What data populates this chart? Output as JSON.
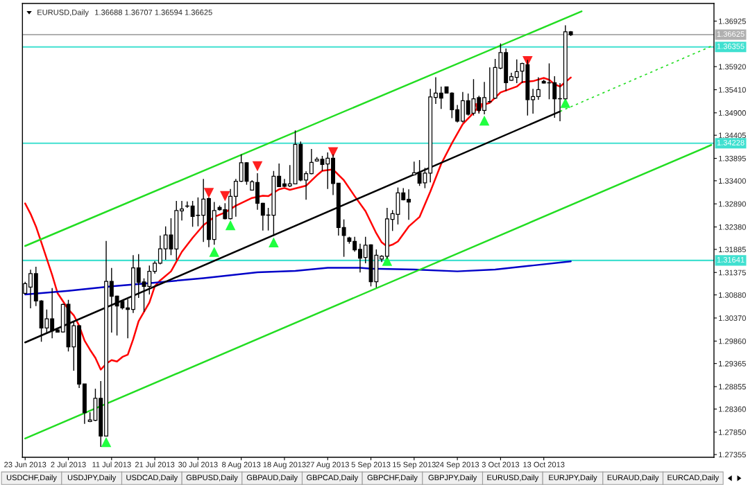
{
  "chart_data": {
    "type": "candlestick",
    "title": "EURUSD,Daily",
    "subtitle": "1.36688 1.36707 1.36594 1.36625",
    "categories": [
      "23 Jun 2013",
      null,
      null,
      null,
      null,
      null,
      null,
      null,
      "2 Jul 2013",
      null,
      null,
      null,
      null,
      null,
      null,
      null,
      "11 Jul 2013",
      null,
      null,
      null,
      null,
      null,
      null,
      null,
      "21 Jul 2013",
      null,
      null,
      null,
      null,
      null,
      null,
      null,
      "30 Jul 2013",
      null,
      null,
      null,
      null,
      null,
      null,
      null,
      "8 Aug 2013",
      null,
      null,
      null,
      null,
      null,
      null,
      null,
      "18 Aug 2013",
      null,
      null,
      null,
      null,
      null,
      null,
      null,
      "27 Aug 2013",
      null,
      null,
      null,
      null,
      null,
      null,
      null,
      "5 Sep 2013",
      null,
      null,
      null,
      null,
      null,
      null,
      null,
      "15 Sep 2013",
      null,
      null,
      null,
      null,
      null,
      null,
      null,
      "24 Sep 2013",
      null,
      null,
      null,
      null,
      null,
      null,
      null,
      "3 Oct 2013",
      null,
      null,
      null,
      null,
      null,
      null,
      null,
      "13 Oct 2013",
      null,
      null,
      null,
      null,
      null,
      null,
      null,
      null,
      null,
      null,
      null,
      null,
      null,
      null,
      null,
      null,
      null,
      null,
      null,
      null,
      null,
      null,
      null,
      null,
      null,
      null,
      null,
      null,
      null,
      null,
      null
    ],
    "ohlc": [
      [
        1.30915,
        1.3117,
        1.3089,
        1.31129
      ],
      [
        1.31053,
        1.31435,
        1.30584,
        1.31349
      ],
      [
        1.31349,
        1.31502,
        1.30635,
        1.30747
      ],
      [
        1.30747,
        1.30762,
        1.29844,
        1.3015
      ],
      [
        1.3015,
        1.30558,
        1.30023,
        1.30354
      ],
      [
        1.30354,
        1.31032,
        1.29921,
        1.30084
      ],
      [
        1.30109,
        1.30125,
        1.30048,
        1.30058
      ],
      [
        1.30063,
        1.30686,
        1.30048,
        1.3067
      ],
      [
        1.30675,
        1.30772,
        1.2963,
        1.29732
      ],
      [
        1.29732,
        1.30303,
        1.29207,
        1.30201
      ],
      [
        1.30201,
        1.30211,
        1.28824,
        1.28911
      ],
      [
        1.28916,
        1.28916,
        1.28034,
        1.28278
      ],
      [
        1.28085,
        1.28289,
        1.28069,
        1.2812
      ],
      [
        1.2811,
        1.28809,
        1.28095,
        1.28595
      ],
      [
        1.28595,
        1.28977,
        1.27524,
        1.27763
      ],
      [
        1.27763,
        1.32073,
        1.27753,
        1.3118
      ],
      [
        1.3118,
        1.31476,
        1.30048,
        1.30849
      ],
      [
        1.30854,
        1.30864,
        1.29982,
        1.30635
      ],
      [
        1.30737,
        1.30747,
        1.30558,
        1.30594
      ],
      [
        1.30594,
        1.30788,
        1.29921,
        1.30558
      ],
      [
        1.30558,
        1.31757,
        1.30482,
        1.31476
      ],
      [
        1.31476,
        1.31782,
        1.30813,
        1.31155
      ],
      [
        1.31165,
        1.31247,
        1.30507,
        1.31068
      ],
      [
        1.31068,
        1.31527,
        1.3089,
        1.314
      ],
      [
        1.314,
        1.31629,
        1.31349,
        1.31578
      ],
      [
        1.31578,
        1.3219,
        1.31553,
        1.31899
      ],
      [
        1.31899,
        1.32394,
        1.31655,
        1.32205
      ],
      [
        1.32205,
        1.32573,
        1.31757,
        1.31894
      ],
      [
        1.31894,
        1.32955,
        1.31655,
        1.32741
      ],
      [
        1.32736,
        1.32955,
        1.32522,
        1.32777
      ],
      [
        1.32843,
        1.32945,
        1.32802,
        1.32838
      ],
      [
        1.32843,
        1.32955,
        1.32384,
        1.32613
      ],
      [
        1.32639,
        1.33032,
        1.32394,
        1.32634
      ],
      [
        1.32639,
        1.3344,
        1.32047,
        1.32996
      ],
      [
        1.33006,
        1.33032,
        1.31935,
        1.32103
      ],
      [
        1.32103,
        1.3293,
        1.31986,
        1.32741
      ],
      [
        1.32812,
        1.32853,
        1.32741,
        1.32761
      ],
      [
        1.32761,
        1.32904,
        1.32547,
        1.32562
      ],
      [
        1.32562,
        1.3322,
        1.32547,
        1.33057
      ],
      [
        1.33057,
        1.3344,
        1.32608,
        1.33389
      ],
      [
        1.33389,
        1.33985,
        1.33373,
        1.33797
      ],
      [
        1.33797,
        1.33812,
        1.33312,
        1.33389
      ],
      [
        1.33195,
        1.33414,
        1.33184,
        1.33378
      ],
      [
        1.33363,
        1.33567,
        1.32761,
        1.32904
      ],
      [
        1.32904,
        1.32914,
        1.32302,
        1.32639
      ],
      [
        1.32644,
        1.32802,
        1.32302,
        1.32639
      ],
      [
        1.32639,
        1.33618,
        1.3218,
        1.33501
      ],
      [
        1.33501,
        1.33781,
        1.33261,
        1.33271
      ],
      [
        1.33332,
        1.3344,
        1.33261,
        1.33276
      ],
      [
        1.33286,
        1.33746,
        1.33261,
        1.33332
      ],
      [
        1.33332,
        1.34511,
        1.33322,
        1.34205
      ],
      [
        1.34205,
        1.34266,
        1.33389,
        1.33414
      ],
      [
        1.33414,
        1.33608,
        1.32981,
        1.33557
      ],
      [
        1.33557,
        1.34103,
        1.33542,
        1.33807
      ],
      [
        1.33837,
        1.33924,
        1.33822,
        1.33873
      ],
      [
        1.33873,
        1.3395,
        1.33618,
        1.33761
      ],
      [
        1.33771,
        1.34026,
        1.3322,
        1.33899
      ],
      [
        1.33899,
        1.33985,
        1.33083,
        1.33338
      ],
      [
        1.33348,
        1.33348,
        1.3219,
        1.32369
      ],
      [
        1.32369,
        1.32547,
        1.31721,
        1.3219
      ],
      [
        1.32139,
        1.32164,
        1.32011,
        1.32063
      ],
      [
        1.32063,
        1.32164,
        1.31833,
        1.31874
      ],
      [
        1.31884,
        1.32011,
        1.31374,
        1.3169
      ],
      [
        1.31706,
        1.32164,
        1.31578,
        1.31976
      ],
      [
        1.31986,
        1.31996,
        1.31068,
        1.3117
      ],
      [
        1.3117,
        1.31884,
        1.31043,
        1.31757
      ],
      [
        1.3167,
        1.31757,
        1.31604,
        1.31731
      ],
      [
        1.31731,
        1.32802,
        1.3168,
        1.32557
      ],
      [
        1.32547,
        1.32751,
        1.32292,
        1.32675
      ],
      [
        1.32659,
        1.33251,
        1.32435,
        1.33134
      ],
      [
        1.33134,
        1.33236,
        1.32965,
        1.32981
      ],
      [
        1.32991,
        1.3321,
        1.32537,
        1.3293
      ],
      [
        1.33531,
        1.33822,
        1.33516,
        1.33577
      ],
      [
        1.33567,
        1.33858,
        1.33287,
        1.33348
      ],
      [
        1.33353,
        1.33684,
        1.33236,
        1.33567
      ],
      [
        1.33567,
        1.35429,
        1.33363,
        1.3525
      ],
      [
        1.3524,
        1.35684,
        1.35097,
        1.35337
      ],
      [
        1.35337,
        1.3548,
        1.34985,
        1.35225
      ],
      [
        1.35474,
        1.35474,
        1.35327,
        1.35337
      ],
      [
        1.35337,
        1.35352,
        1.34781,
        1.3497
      ],
      [
        1.3497,
        1.35072,
        1.34689,
        1.34715
      ],
      [
        1.34715,
        1.35362,
        1.34689,
        1.35168
      ],
      [
        1.35168,
        1.35327,
        1.34842,
        1.34868
      ],
      [
        1.34893,
        1.35643,
        1.34842,
        1.35209
      ],
      [
        1.35235,
        1.35276,
        1.34883,
        1.34954
      ],
      [
        1.34954,
        1.35582,
        1.34867,
        1.35235
      ],
      [
        1.35143,
        1.35903,
        1.35123,
        1.35148
      ],
      [
        1.35225,
        1.36092,
        1.35209,
        1.35903
      ],
      [
        1.35888,
        1.36433,
        1.35862,
        1.36229
      ],
      [
        1.36229,
        1.36321,
        1.35378,
        1.35566
      ],
      [
        1.35617,
        1.35786,
        1.35607,
        1.35699
      ],
      [
        1.35684,
        1.36081,
        1.35556,
        1.35811
      ],
      [
        1.35821,
        1.36005,
        1.35556,
        1.3599
      ],
      [
        1.35964,
        1.36066,
        1.34842,
        1.35189
      ],
      [
        1.35189,
        1.35429,
        1.34883,
        1.3526
      ],
      [
        1.3526,
        1.35684,
        1.35189,
        1.35413
      ],
      [
        1.35597,
        1.35633,
        1.35546,
        1.35556
      ],
      [
        1.35566,
        1.3599,
        1.35199,
        1.35561
      ],
      [
        1.35566,
        1.35709,
        1.34791,
        1.35209
      ],
      [
        1.35209,
        1.35556,
        1.34715,
        1.35214
      ],
      [
        1.35209,
        1.36831,
        1.35199,
        1.36688
      ],
      [
        1.36688,
        1.36707,
        1.36594,
        1.36625
      ],
      null,
      null,
      null,
      null,
      null,
      null,
      null,
      null,
      null,
      null,
      null,
      null,
      null,
      null,
      null,
      null,
      null,
      null,
      null,
      null,
      null,
      null,
      null,
      null,
      null,
      null
    ],
    "series": [
      {
        "type": "line",
        "color": "#ff0000",
        "values": [
          1.329,
          1.3267,
          1.3239,
          1.3204,
          1.3168,
          1.3132,
          1.3092,
          null,
          1.3056,
          1.3043,
          1.302,
          1.2987,
          1.2967,
          1.2949,
          1.2923,
          1.2936,
          1.2944,
          1.2941,
          1.2951,
          1.2956,
          1.299,
          1.303,
          null,
          1.3071,
          1.3107,
          1.312,
          null,
          1.314,
          null,
          1.3183,
          null,
          1.3214,
          null,
          1.3242,
          null,
          1.326,
          null,
          1.327,
          null,
          1.3285,
          null,
          null,
          1.3302,
          null,
          1.3307,
          1.3306,
          null,
          1.3321,
          1.3324,
          1.332,
          null,
          null,
          1.3329,
          null,
          1.3352,
          1.3362,
          null,
          1.3365,
          null,
          1.3341,
          null,
          1.3306,
          null,
          1.3273,
          null,
          1.3224,
          1.3204,
          1.3195,
          1.3199,
          1.3206,
          null,
          1.3239,
          null,
          1.326,
          null,
          1.3316,
          null,
          1.3377,
          null,
          1.3423,
          null,
          1.3465,
          null,
          1.349,
          1.3505,
          null,
          1.3512,
          null,
          1.3535,
          null,
          null,
          1.3548,
          1.3558,
          null,
          1.356,
          null,
          1.3567,
          1.3563,
          1.3553,
          1.3548,
          null,
          1.3568,
          null,
          null,
          null,
          null,
          null,
          null,
          null,
          null,
          null,
          null,
          null,
          null,
          null,
          null,
          null,
          null,
          null,
          null,
          null,
          null,
          null,
          null,
          null,
          null,
          null,
          null
        ]
      },
      {
        "type": "line",
        "color": "#0000c8",
        "values": [
          1.3089,
          null,
          null,
          null,
          null,
          null,
          null,
          null,
          1.3097,
          null,
          null,
          null,
          null,
          null,
          null,
          null,
          1.3107,
          null,
          null,
          null,
          null,
          null,
          null,
          null,
          1.3115,
          null,
          null,
          null,
          null,
          null,
          null,
          null,
          null,
          1.3125,
          null,
          null,
          null,
          null,
          null,
          null,
          null,
          null,
          null,
          1.3138,
          null,
          null,
          null,
          null,
          null,
          null,
          1.3141,
          null,
          null,
          null,
          null,
          null,
          1.3148,
          null,
          null,
          null,
          null,
          null,
          1.3148,
          null,
          1.3146,
          null,
          null,
          null,
          null,
          null,
          null,
          null,
          1.3144,
          null,
          null,
          null,
          null,
          null,
          null,
          null,
          1.314,
          null,
          null,
          null,
          null,
          null,
          null,
          1.3144,
          null,
          null,
          null,
          null,
          null,
          null,
          1.3153,
          null,
          null,
          null,
          null,
          null,
          null,
          1.3162,
          null,
          null,
          null,
          null,
          null,
          null,
          null,
          null,
          null,
          null,
          null,
          null,
          null,
          null,
          null,
          null,
          null,
          null,
          null,
          null,
          null,
          null,
          null,
          null,
          null,
          null
        ]
      },
      {
        "type": "line",
        "color": "#22dd22",
        "values": [
          1.3196,
          null,
          null,
          null,
          null,
          null,
          null,
          null,
          null,
          null,
          null,
          null,
          null,
          null,
          null,
          null,
          null,
          null,
          null,
          null,
          null,
          null,
          null,
          null,
          null,
          null,
          null,
          null,
          null,
          null,
          null,
          null,
          null,
          null,
          null,
          null,
          null,
          null,
          null,
          null,
          null,
          null,
          null,
          null,
          null,
          null,
          null,
          null,
          null,
          null,
          null,
          null,
          null,
          null,
          null,
          null,
          null,
          null,
          null,
          null,
          null,
          null,
          null,
          null,
          null,
          null,
          null,
          null,
          null,
          null,
          null,
          null,
          null,
          null,
          null,
          null,
          null,
          null,
          null,
          null,
          null,
          null,
          null,
          null,
          null,
          null,
          null,
          null,
          null,
          null,
          null,
          null,
          null,
          null,
          null,
          null,
          null,
          null,
          null,
          null,
          null,
          null,
          null,
          1.3714,
          null,
          null,
          null,
          null,
          null,
          null,
          null,
          null,
          null,
          null,
          null,
          null,
          null,
          null,
          null,
          null,
          null,
          null,
          null,
          null,
          null,
          null,
          null,
          null
        ]
      },
      {
        "type": "line",
        "color": "#22dd22",
        "values": [
          1.2771,
          null,
          null,
          null,
          null,
          null,
          null,
          null,
          null,
          null,
          null,
          null,
          null,
          null,
          null,
          null,
          null,
          null,
          null,
          null,
          null,
          null,
          null,
          null,
          null,
          null,
          null,
          null,
          null,
          null,
          null,
          null,
          null,
          null,
          null,
          null,
          null,
          null,
          null,
          null,
          null,
          null,
          null,
          null,
          null,
          null,
          null,
          null,
          null,
          null,
          null,
          null,
          null,
          null,
          null,
          null,
          null,
          null,
          null,
          null,
          null,
          null,
          null,
          null,
          null,
          null,
          null,
          null,
          null,
          null,
          null,
          null,
          null,
          null,
          null,
          null,
          null,
          null,
          null,
          null,
          null,
          null,
          null,
          null,
          null,
          null,
          null,
          null,
          null,
          null,
          null,
          null,
          null,
          null,
          null,
          null,
          null,
          null,
          null,
          null,
          null,
          null,
          null,
          null,
          null,
          null,
          null,
          null,
          null,
          null,
          null,
          null,
          null,
          null,
          null,
          null,
          null,
          null,
          null,
          null,
          null,
          null,
          null,
          null,
          null,
          null,
          null,
          1.3419
        ]
      },
      {
        "type": "line",
        "color": "#000000",
        "values": [
          1.2983,
          null,
          null,
          null,
          null,
          null,
          null,
          null,
          null,
          null,
          null,
          null,
          null,
          null,
          null,
          null,
          null,
          null,
          null,
          null,
          null,
          null,
          null,
          null,
          null,
          null,
          null,
          null,
          null,
          null,
          null,
          null,
          null,
          null,
          null,
          null,
          null,
          null,
          null,
          null,
          null,
          null,
          null,
          null,
          null,
          null,
          null,
          null,
          null,
          null,
          null,
          null,
          null,
          null,
          null,
          null,
          null,
          null,
          null,
          null,
          null,
          null,
          null,
          null,
          null,
          null,
          null,
          null,
          null,
          null,
          null,
          null,
          null,
          null,
          null,
          null,
          null,
          null,
          null,
          null,
          null,
          null,
          null,
          null,
          null,
          null,
          null,
          null,
          null,
          null,
          null,
          null,
          null,
          null,
          null,
          null,
          null,
          null,
          null,
          1.3493,
          null,
          null,
          null,
          null,
          null,
          null,
          null,
          null,
          null,
          null,
          null,
          null,
          null,
          null,
          null,
          null,
          null,
          null,
          null,
          null,
          null,
          null,
          null,
          null,
          null,
          null,
          null,
          null
        ]
      },
      {
        "type": "line",
        "color": "#22dd22",
        "line_style": "dotted",
        "values": [
          null,
          null,
          null,
          null,
          null,
          null,
          null,
          null,
          null,
          null,
          null,
          null,
          null,
          null,
          null,
          null,
          null,
          null,
          null,
          null,
          null,
          null,
          null,
          null,
          null,
          null,
          null,
          null,
          null,
          null,
          null,
          null,
          null,
          null,
          null,
          null,
          null,
          null,
          null,
          null,
          null,
          null,
          null,
          null,
          null,
          null,
          null,
          null,
          null,
          null,
          null,
          null,
          null,
          null,
          null,
          null,
          null,
          null,
          null,
          null,
          null,
          null,
          null,
          null,
          null,
          null,
          null,
          null,
          null,
          null,
          null,
          null,
          null,
          null,
          null,
          null,
          null,
          null,
          null,
          null,
          null,
          null,
          null,
          null,
          null,
          null,
          null,
          null,
          null,
          null,
          null,
          null,
          null,
          null,
          null,
          null,
          null,
          null,
          null,
          1.3493,
          null,
          null,
          null,
          null,
          null,
          null,
          null,
          null,
          null,
          null,
          null,
          null,
          null,
          null,
          null,
          null,
          null,
          null,
          null,
          null,
          null,
          null,
          null,
          null,
          null,
          null,
          null,
          1.3637
        ]
      },
      {
        "type": "scatter",
        "color": "#ff2020",
        "marker": "triangle",
        "values": [
          null,
          null,
          null,
          null,
          null,
          null,
          null,
          null,
          null,
          null,
          null,
          null,
          null,
          null,
          null,
          null,
          null,
          null,
          null,
          null,
          null,
          null,
          null,
          null,
          null,
          null,
          null,
          null,
          null,
          null,
          null,
          null,
          null,
          null,
          1.3313,
          null,
          null,
          1.3306,
          null,
          null,
          null,
          null,
          null,
          1.3372,
          null,
          null,
          null,
          null,
          null,
          null,
          null,
          null,
          null,
          null,
          null,
          null,
          null,
          1.3403,
          null,
          null,
          null,
          null,
          null,
          null,
          null,
          null,
          null,
          null,
          null,
          null,
          null,
          null,
          null,
          null,
          null,
          null,
          null,
          null,
          null,
          null,
          null,
          null,
          null,
          null,
          1.35,
          null,
          null,
          null,
          null,
          null,
          null,
          null,
          null,
          1.3604,
          null,
          null,
          null,
          null,
          null,
          null,
          null,
          null,
          null,
          null,
          null,
          null,
          null,
          null,
          null,
          null,
          null,
          null,
          null,
          null,
          null,
          null,
          null,
          null,
          null,
          null,
          null,
          null,
          null,
          null,
          null,
          null,
          null,
          null
        ]
      },
      {
        "type": "scatter",
        "color": "#20ff40",
        "marker": "triangle",
        "values": [
          null,
          null,
          null,
          null,
          null,
          null,
          null,
          null,
          null,
          null,
          null,
          null,
          null,
          null,
          null,
          1.2763,
          null,
          null,
          null,
          null,
          null,
          null,
          null,
          null,
          null,
          null,
          null,
          null,
          null,
          null,
          null,
          null,
          null,
          null,
          null,
          1.3183,
          null,
          null,
          1.3242,
          null,
          null,
          null,
          null,
          null,
          null,
          null,
          1.3204,
          null,
          null,
          null,
          null,
          null,
          null,
          null,
          null,
          null,
          null,
          null,
          null,
          null,
          null,
          null,
          null,
          null,
          null,
          null,
          null,
          1.3163,
          null,
          null,
          null,
          null,
          null,
          null,
          null,
          null,
          null,
          null,
          null,
          null,
          null,
          null,
          null,
          null,
          null,
          1.3473,
          null,
          null,
          null,
          null,
          null,
          null,
          null,
          null,
          null,
          null,
          null,
          null,
          null,
          null,
          1.3512,
          null,
          null,
          null,
          null,
          null,
          null,
          null,
          null,
          null,
          null,
          null,
          null,
          null,
          null,
          null,
          null,
          null,
          null,
          null,
          null,
          null,
          null,
          null,
          null,
          null,
          null,
          null
        ]
      }
    ],
    "ref_lines": [
      {
        "axis": "y",
        "value": 1.36625,
        "label": "1.36625",
        "color": "#b0b0b0"
      },
      {
        "axis": "y",
        "value": 1.36355,
        "label": "1.36355",
        "color": "#40e0d0"
      },
      {
        "axis": "y",
        "value": 1.34228,
        "label": "1.34228",
        "color": "#40e0d0"
      },
      {
        "axis": "y",
        "value": 1.31641,
        "label": "1.31641",
        "color": "#40e0d0"
      }
    ],
    "ylim": [
      1.27294,
      1.37315
    ],
    "yticks": [
      1.36925,
      {
        "value": 1.3592,
        "label": "1.35920"
      },
      {
        "value": 1.3541,
        "label": "1.35410"
      },
      {
        "value": 1.349,
        "label": "1.34900"
      },
      1.34405,
      1.33895,
      {
        "value": 1.334,
        "label": "1.33400"
      },
      {
        "value": 1.3289,
        "label": "1.32890"
      },
      {
        "value": 1.3238,
        "label": "1.32380"
      },
      1.31885,
      1.31375,
      {
        "value": 1.3088,
        "label": "1.30880"
      },
      {
        "value": 1.3037,
        "label": "1.30370"
      },
      {
        "value": 1.2986,
        "label": "1.29860"
      },
      1.29365,
      1.28855,
      {
        "value": 1.2836,
        "label": "1.28360"
      },
      {
        "value": 1.2785,
        "label": "1.27850"
      },
      1.27355
    ],
    "annotations": [
      "USDCHF,Daily",
      "USDJPY,Daily",
      "USDCAD,Daily",
      "GBPUSD,Daily",
      "GBPAUD,Daily",
      "GBPCAD,Daily",
      "GBPCHF,Daily",
      "GBPJPY,Daily",
      "EURUSD,Daily",
      "EURJPY,Daily",
      "EURAUD,Daily",
      "EURCAD,Daily"
    ]
  }
}
